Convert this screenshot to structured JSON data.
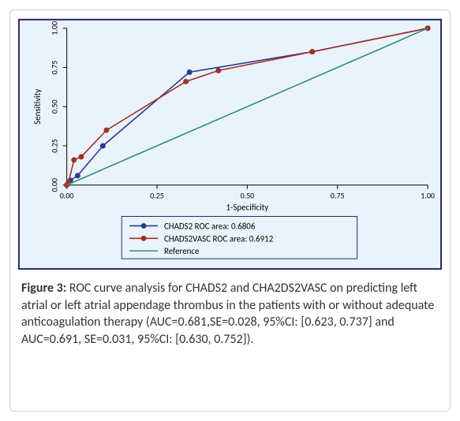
{
  "chart": {
    "type": "line",
    "background_color": "#eaf3fb",
    "plot_bg": "#eaf3fb",
    "border_color": "#2a2a6a",
    "axis_color": "#000000",
    "tick_fontsize": 10,
    "label_fontsize": 11,
    "xlabel": "1-Specificity",
    "ylabel": "Sensitivity",
    "xlim": [
      0,
      1
    ],
    "ylim": [
      0,
      1
    ],
    "xticks": [
      0.0,
      0.25,
      0.5,
      0.75,
      1.0
    ],
    "xtick_labels": [
      "0.00",
      "0.25",
      "0.50",
      "0.75",
      "1.00"
    ],
    "yticks": [
      0.0,
      0.25,
      0.5,
      0.75,
      1.0
    ],
    "ytick_labels": [
      "0.00",
      "0.25",
      "0.50",
      "0.75",
      "1.00"
    ],
    "line_width": 1.6,
    "marker_size": 3.5,
    "series": [
      {
        "name": "CHADS2",
        "label": "CHADS2 ROC area: 0.6806",
        "color": "#2b3a8f",
        "marker": "circle",
        "x": [
          0.0,
          0.01,
          0.03,
          0.1,
          0.34,
          0.68,
          1.0
        ],
        "y": [
          0.0,
          0.03,
          0.06,
          0.25,
          0.72,
          0.85,
          1.0
        ]
      },
      {
        "name": "CHADS2VASC",
        "label": "CHADS2VASC ROC area: 0.6912",
        "color": "#a03028",
        "marker": "circle",
        "x": [
          0.0,
          0.005,
          0.02,
          0.04,
          0.11,
          0.33,
          0.42,
          0.68,
          1.0
        ],
        "y": [
          0.0,
          0.02,
          0.16,
          0.18,
          0.35,
          0.66,
          0.73,
          0.85,
          1.0
        ]
      },
      {
        "name": "Reference",
        "label": "Reference",
        "color": "#2a8f7a",
        "marker": "none",
        "x": [
          0.0,
          1.0
        ],
        "y": [
          0.0,
          1.0
        ]
      }
    ],
    "legend": {
      "border_color": "#2a2a6a",
      "bg": "#eaf3fb",
      "fontsize": 11
    }
  },
  "caption": {
    "label": "Figure 3:",
    "text": "ROC curve analysis for CHADS2 and CHA2DS2VASC on predicting left atrial or left atrial appendage thrombus in the patients with or without adequate anticoagulation therapy (AUC=0.681,SE=0.028, 95%CI: [0.623, 0.737] and AUC=0.691, SE=0.031, 95%CI: [0.630, 0.752])."
  }
}
